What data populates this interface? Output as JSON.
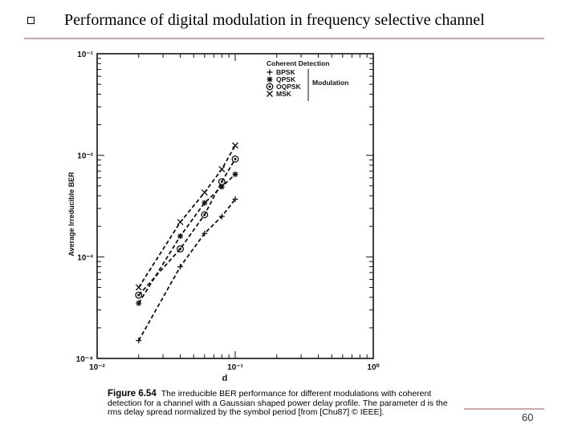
{
  "slide": {
    "title": "Performance of digital modulation in frequency selective  channel",
    "page_number": "60"
  },
  "caption": {
    "label": "Figure 6.54",
    "text": "The irreducible BER performance for different modulations with coherent detection for a channel with a Gaussian shaped power delay profile. The parameter d is the rms delay spread normalized by the symbol period [from [Chu87] © IEEE]."
  },
  "chart_data": {
    "type": "line",
    "title": "",
    "xlabel": "d",
    "ylabel": "Average Irreducible BER",
    "x_scale": "log",
    "y_scale": "log",
    "xlim": [
      0.01,
      1
    ],
    "ylim": [
      0.0001,
      0.1
    ],
    "x_tick_labels": [
      "10⁻²",
      "10⁻¹",
      "10⁰"
    ],
    "x_tick_values": [
      0.01,
      0.1,
      1
    ],
    "y_tick_labels": [
      "10⁻⁴",
      "10⁻³",
      "10⁻²",
      "10⁻¹"
    ],
    "y_tick_values": [
      0.0001,
      0.001,
      0.01,
      0.1
    ],
    "legend": {
      "title": "Coherent Detection",
      "group_label": "Modulation",
      "placement": "top-right",
      "entries": [
        {
          "marker": "+",
          "name": "BPSK"
        },
        {
          "marker": "✱",
          "name": "QPSK"
        },
        {
          "marker": "⊙",
          "name": "OQPSK"
        },
        {
          "marker": "×",
          "name": "MSK"
        }
      ]
    },
    "series": [
      {
        "name": "BPSK",
        "marker": "plus",
        "x": [
          0.02,
          0.04,
          0.06,
          0.08,
          0.1
        ],
        "y": [
          0.00015,
          0.0008,
          0.0017,
          0.0025,
          0.0037
        ]
      },
      {
        "name": "QPSK",
        "marker": "asterisk",
        "x": [
          0.02,
          0.04,
          0.06,
          0.08,
          0.1
        ],
        "y": [
          0.00035,
          0.0016,
          0.0034,
          0.0049,
          0.0065
        ]
      },
      {
        "name": "OQPSK",
        "marker": "circle-dot",
        "x": [
          0.02,
          0.04,
          0.06,
          0.08,
          0.1
        ],
        "y": [
          0.00042,
          0.0012,
          0.0026,
          0.0055,
          0.0092
        ]
      },
      {
        "name": "MSK",
        "marker": "cross",
        "x": [
          0.02,
          0.04,
          0.06,
          0.08,
          0.1
        ],
        "y": [
          0.0005,
          0.0022,
          0.0043,
          0.0073,
          0.0125
        ]
      }
    ]
  }
}
